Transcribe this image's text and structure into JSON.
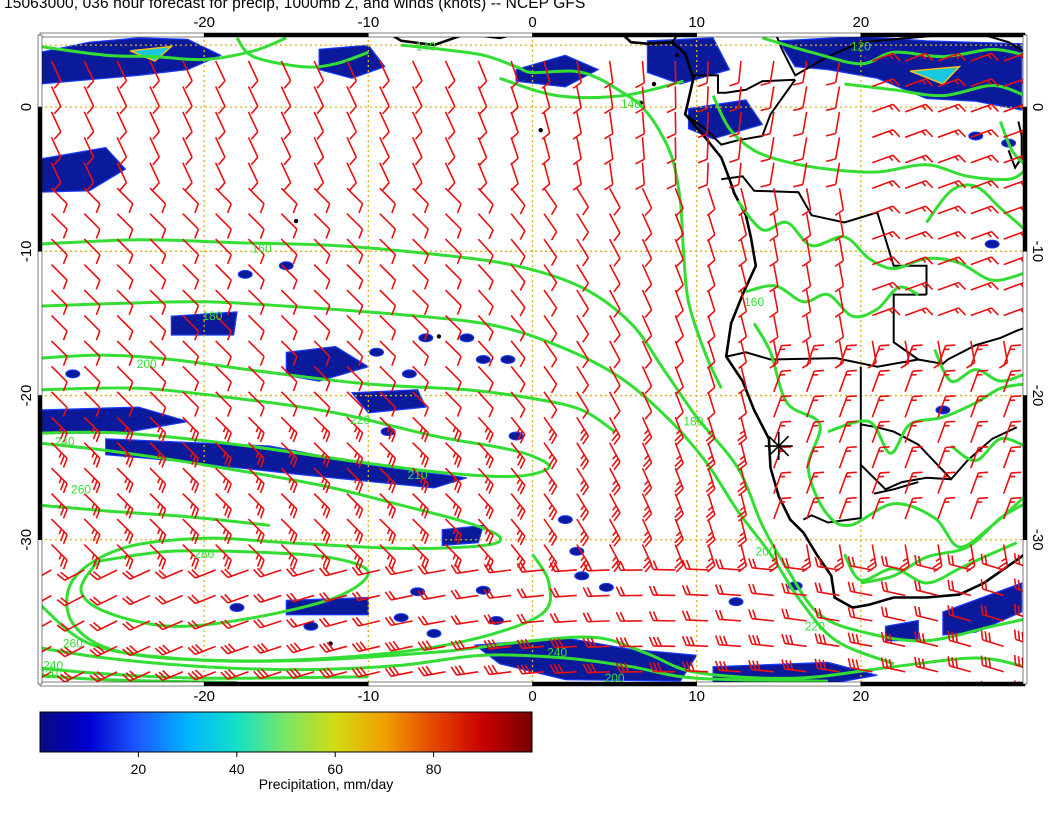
{
  "title": "15063000, 036 hour forecast for precip, 1000mb Z, and winds (knots) -- NCEP GFS",
  "map": {
    "lon_range": [
      -30,
      30
    ],
    "lat_range": [
      -40,
      5
    ],
    "lon_ticks": [
      "-20",
      "-10",
      "0",
      "10",
      "20"
    ],
    "lat_ticks": [
      "0",
      "-10",
      "-20",
      "-30"
    ],
    "gridlines": true,
    "contour_color": "#33dd33",
    "barb_color": "#e81010",
    "coast_color": "#000000",
    "grid_color": "#e0b020"
  },
  "contours": {
    "labels": [
      {
        "text": "160",
        "lon": -16.5,
        "lat": -9.8
      },
      {
        "text": "180",
        "lon": -19.5,
        "lat": -14.5
      },
      {
        "text": "200",
        "lon": -23.5,
        "lat": -17.8
      },
      {
        "text": "220",
        "lon": -10.5,
        "lat": -21.7
      },
      {
        "text": "240",
        "lon": -28.5,
        "lat": -23.2
      },
      {
        "text": "210",
        "lon": -7.0,
        "lat": -25.5
      },
      {
        "text": "260",
        "lon": -27.5,
        "lat": -26.5
      },
      {
        "text": "280",
        "lon": -20.0,
        "lat": -31.0
      },
      {
        "text": "180",
        "lon": 9.8,
        "lat": -21.8
      },
      {
        "text": "200",
        "lon": 14.2,
        "lat": -30.8
      },
      {
        "text": "220",
        "lon": 17.2,
        "lat": -36.0
      },
      {
        "text": "240",
        "lon": 1.5,
        "lat": -37.8
      },
      {
        "text": "260",
        "lon": -28.0,
        "lat": -37.2
      },
      {
        "text": "240",
        "lon": -29.2,
        "lat": -38.7
      },
      {
        "text": "220",
        "lon": -29.5,
        "lat": -39.3
      },
      {
        "text": "200",
        "lon": 5.0,
        "lat": -39.6
      },
      {
        "text": "140",
        "lon": 6.0,
        "lat": 0.2
      },
      {
        "text": "160",
        "lon": 13.5,
        "lat": -13.5
      },
      {
        "text": "140",
        "lon": -6.5,
        "lat": 4.2
      },
      {
        "text": "120",
        "lon": 20.0,
        "lat": 4.2
      }
    ]
  },
  "colorbar": {
    "label": "Precipitation, mm/day",
    "ticks": [
      "20",
      "40",
      "60",
      "80"
    ],
    "tick_values": [
      20,
      40,
      60,
      80
    ],
    "range": [
      0,
      100
    ],
    "colors": [
      "#0a0a82",
      "#0000d0",
      "#1e5aff",
      "#00b4ff",
      "#14e0c8",
      "#78e664",
      "#d2dc14",
      "#f0a000",
      "#e64600",
      "#c80000",
      "#780000"
    ]
  }
}
